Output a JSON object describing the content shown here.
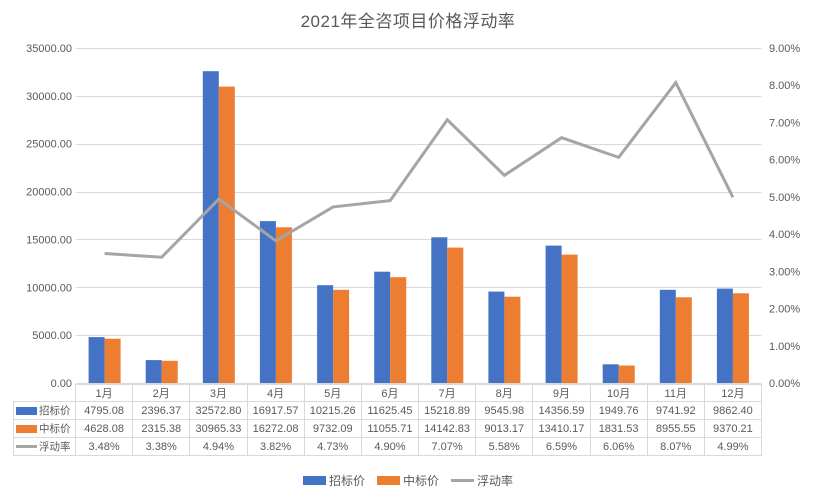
{
  "title": "2021年全咨项目价格浮动率",
  "colors": {
    "tender_blue": "#4472C4",
    "winning_orange": "#ED7D31",
    "rate_gray": "#A5A5A5",
    "gridline": "#D9D9D9",
    "table_border": "#D9D9D9",
    "text": "#595959"
  },
  "chart_data": {
    "type": "combo",
    "title": "2021年全咨项目价格浮动率",
    "categories": [
      "1月",
      "2月",
      "3月",
      "4月",
      "5月",
      "6月",
      "7月",
      "8月",
      "9月",
      "10月",
      "11月",
      "12月"
    ],
    "series": [
      {
        "name": "招标价",
        "type": "bar",
        "axis": "left",
        "color": "#4472C4",
        "values": [
          4795.08,
          2396.37,
          32572.8,
          16917.57,
          10215.26,
          11625.45,
          15218.89,
          9545.98,
          14356.59,
          1949.76,
          9741.92,
          9862.4
        ]
      },
      {
        "name": "中标价",
        "type": "bar",
        "axis": "left",
        "color": "#ED7D31",
        "values": [
          4628.08,
          2315.38,
          30965.33,
          16272.08,
          9732.09,
          11055.71,
          14142.83,
          9013.17,
          13410.17,
          1831.53,
          8955.55,
          9370.21
        ]
      },
      {
        "name": "浮动率",
        "type": "line",
        "axis": "right",
        "color": "#A5A5A5",
        "unit": "%",
        "values": [
          3.48,
          3.38,
          4.94,
          3.82,
          4.73,
          4.9,
          7.07,
          5.58,
          6.59,
          6.06,
          8.07,
          4.99
        ]
      }
    ],
    "left_axis": {
      "min": 0,
      "max": 35000,
      "step": 5000,
      "tick_labels": [
        "0.00",
        "5000.00",
        "10000.00",
        "15000.00",
        "20000.00",
        "25000.00",
        "30000.00",
        "35000.00"
      ]
    },
    "right_axis": {
      "min": 0,
      "max": 9,
      "step": 1,
      "tick_labels": [
        "0.00%",
        "1.00%",
        "2.00%",
        "3.00%",
        "4.00%",
        "5.00%",
        "6.00%",
        "7.00%",
        "8.00%",
        "9.00%"
      ]
    },
    "grid": true,
    "legend_position": "bottom",
    "data_table_shown": true
  },
  "table": {
    "header": [
      "1月",
      "2月",
      "3月",
      "4月",
      "5月",
      "6月",
      "7月",
      "8月",
      "9月",
      "10月",
      "11月",
      "12月"
    ],
    "rows": [
      {
        "label": "招标价",
        "swatch": "bar-blue",
        "cells": [
          "4795.08",
          "2396.37",
          "32572.80",
          "16917.57",
          "10215.26",
          "11625.45",
          "15218.89",
          "9545.98",
          "14356.59",
          "1949.76",
          "9741.92",
          "9862.40"
        ]
      },
      {
        "label": "中标价",
        "swatch": "bar-orange",
        "cells": [
          "4628.08",
          "2315.38",
          "30965.33",
          "16272.08",
          "9732.09",
          "11055.71",
          "14142.83",
          "9013.17",
          "13410.17",
          "1831.53",
          "8955.55",
          "9370.21"
        ]
      },
      {
        "label": "浮动率",
        "swatch": "line-gray",
        "cells": [
          "3.48%",
          "3.38%",
          "4.94%",
          "3.82%",
          "4.73%",
          "4.90%",
          "7.07%",
          "5.58%",
          "6.59%",
          "6.06%",
          "8.07%",
          "4.99%"
        ]
      }
    ]
  },
  "legend": {
    "items": [
      {
        "label": "招标价",
        "swatch": "bar",
        "color": "#4472C4"
      },
      {
        "label": "中标价",
        "swatch": "bar",
        "color": "#ED7D31"
      },
      {
        "label": "浮动率",
        "swatch": "line",
        "color": "#A5A5A5"
      }
    ]
  }
}
